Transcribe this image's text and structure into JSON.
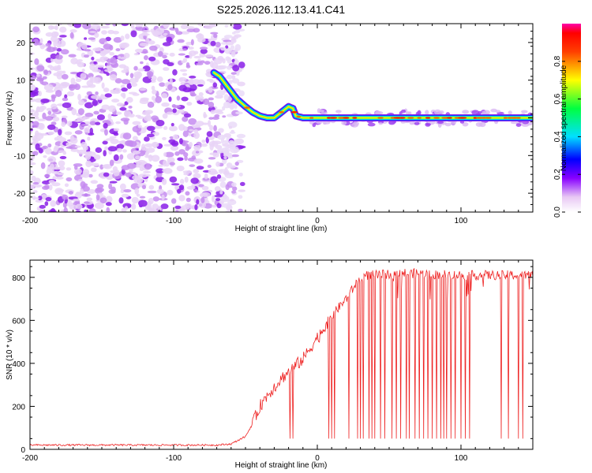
{
  "title": "S225.2026.112.13.41.C41",
  "chart_data": [
    {
      "type": "heatmap",
      "xlabel": "Height of straight line (km)",
      "ylabel": "Frequency (Hz)",
      "xlim": [
        -200,
        150
      ],
      "ylim": [
        -25,
        25
      ],
      "xticks": [
        -200,
        -100,
        0,
        100
      ],
      "yticks": [
        -20,
        -10,
        0,
        10,
        20
      ],
      "colorbar": {
        "label": "Normalized spectral amplitude",
        "range": [
          0,
          1
        ],
        "ticks": [
          0.0,
          0.2,
          0.4,
          0.6,
          0.8
        ]
      },
      "ridge": {
        "x": [
          -72,
          -68,
          -62,
          -56,
          -50,
          -45,
          -40,
          -35,
          -30,
          -25,
          -20,
          -17,
          -15,
          -10,
          -5,
          0,
          20,
          50,
          100,
          150
        ],
        "y": [
          12,
          11,
          8,
          5,
          3,
          1.5,
          0.5,
          0,
          0,
          1.5,
          3,
          2.5,
          0.5,
          0,
          0,
          0,
          0,
          0,
          0,
          0
        ]
      },
      "noise_region": [
        -200,
        -60
      ]
    },
    {
      "type": "line",
      "xlabel": "Height of straight line (km)",
      "ylabel": "SNR (10 * v/v)",
      "xlim": [
        -200,
        150
      ],
      "ylim": [
        0,
        880
      ],
      "xticks": [
        -200,
        -100,
        0,
        100
      ],
      "yticks": [
        0,
        200,
        400,
        600,
        800
      ],
      "series": [
        {
          "name": "SNR",
          "color": "#ee2222",
          "x": [
            -200,
            -150,
            -100,
            -70,
            -60,
            -50,
            -45,
            -40,
            -35,
            -30,
            -25,
            -20,
            -15,
            -10,
            -5,
            0,
            5,
            10,
            15,
            20,
            25,
            28,
            30,
            35,
            40,
            50,
            60,
            80,
            100,
            120,
            150
          ],
          "y": [
            20,
            20,
            20,
            20,
            25,
            60,
            120,
            200,
            250,
            290,
            330,
            360,
            390,
            420,
            470,
            520,
            570,
            620,
            660,
            700,
            750,
            780,
            800,
            810,
            810,
            815,
            820,
            815,
            810,
            810,
            810
          ]
        }
      ],
      "dropouts_x": [
        -19,
        -17,
        8,
        10,
        12,
        22,
        28,
        30,
        32,
        36,
        38,
        40,
        44,
        47,
        52,
        55,
        58,
        62,
        64,
        68,
        71,
        74,
        77,
        80,
        83,
        86,
        88,
        90,
        93,
        96,
        100,
        103,
        106,
        128,
        133,
        140,
        143
      ],
      "dropout_y": 50
    }
  ]
}
